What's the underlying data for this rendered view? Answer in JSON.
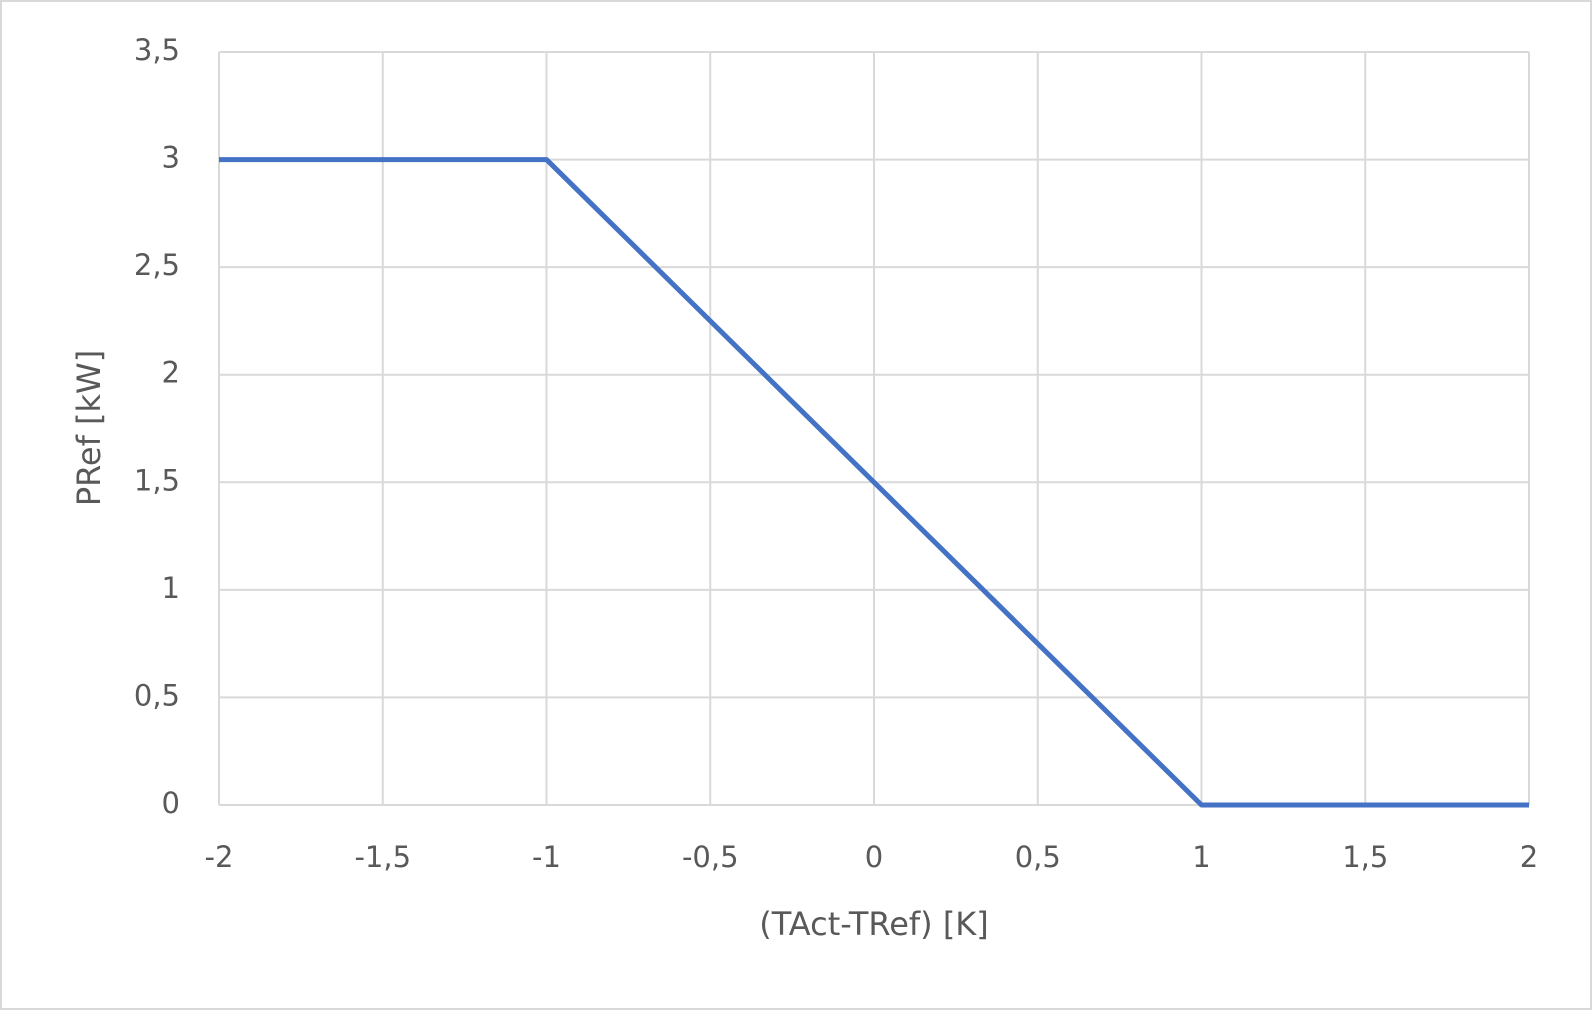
{
  "chart_data": {
    "type": "line",
    "x_label": "(TAct-TRef) [K]",
    "y_label": "PRef [kW]",
    "x": [
      -2,
      -1,
      1,
      2
    ],
    "values": [
      3,
      3,
      0,
      0
    ],
    "color": "#4472c4",
    "xlim": [
      -2,
      2
    ],
    "ylim": [
      0,
      3.5
    ],
    "xticks": [
      -2,
      {
        "value": -1.5,
        "label": "-1,5"
      },
      -1,
      {
        "value": -0.5,
        "label": "-0,5"
      },
      0,
      {
        "value": 0.5,
        "label": "0,5"
      },
      1,
      {
        "value": 1.5,
        "label": "1,5"
      },
      2
    ],
    "yticks": [
      0,
      {
        "value": 0.5,
        "label": "0,5"
      },
      1,
      {
        "value": 1.5,
        "label": "1,5"
      },
      2,
      {
        "value": 2.5,
        "label": "2,5"
      },
      3,
      {
        "value": 3.5,
        "label": "3,5"
      }
    ],
    "grid": true
  }
}
